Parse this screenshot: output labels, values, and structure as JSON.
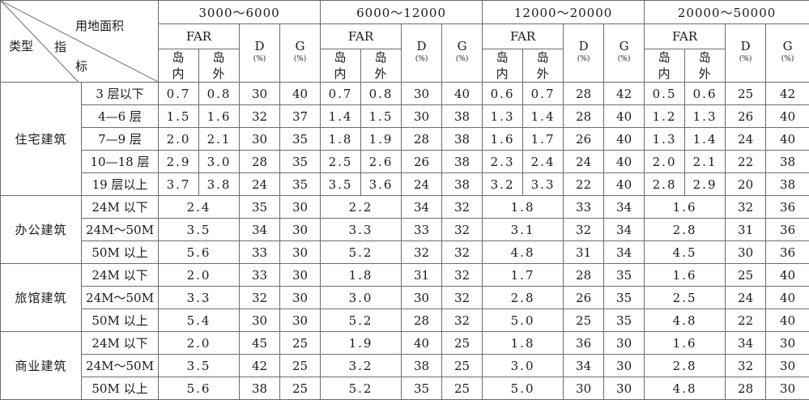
{
  "corner": {
    "land_area": "用地面积",
    "indicator_1": "指",
    "indicator_2": "标",
    "type": "类型"
  },
  "area_ranges": [
    "3000～6000",
    "6000～12000",
    "12000～20000",
    "20000～50000"
  ],
  "far_label": "FAR",
  "island_in": [
    "岛",
    "内"
  ],
  "island_out": [
    "岛",
    "外"
  ],
  "d_label": "D",
  "g_label": "G",
  "unit": "(%)",
  "categories": [
    {
      "name": "住宅建筑",
      "rows": [
        {
          "label": "3 层以下",
          "cells": [
            [
              "0.7",
              "0.8",
              "30",
              "40"
            ],
            [
              "0.7",
              "0.8",
              "30",
              "40"
            ],
            [
              "0.6",
              "0.7",
              "28",
              "42"
            ],
            [
              "0.5",
              "0.6",
              "25",
              "42"
            ]
          ]
        },
        {
          "label": "4—6 层",
          "cells": [
            [
              "1.5",
              "1.6",
              "32",
              "37"
            ],
            [
              "1.4",
              "1.5",
              "30",
              "38"
            ],
            [
              "1.3",
              "1.4",
              "28",
              "40"
            ],
            [
              "1.2",
              "1.3",
              "26",
              "40"
            ]
          ]
        },
        {
          "label": "7—9 层",
          "cells": [
            [
              "2.0",
              "2.1",
              "30",
              "35"
            ],
            [
              "1.8",
              "1.9",
              "28",
              "38"
            ],
            [
              "1.6",
              "1.7",
              "26",
              "40"
            ],
            [
              "1.3",
              "1.4",
              "24",
              "40"
            ]
          ]
        },
        {
          "label": "10—18 层",
          "cells": [
            [
              "2.9",
              "3.0",
              "28",
              "35"
            ],
            [
              "2.5",
              "2.6",
              "26",
              "38"
            ],
            [
              "2.3",
              "2.4",
              "24",
              "40"
            ],
            [
              "2.0",
              "2.1",
              "22",
              "38"
            ]
          ]
        },
        {
          "label": "19 层以上",
          "cells": [
            [
              "3.7",
              "3.8",
              "24",
              "35"
            ],
            [
              "3.5",
              "3.6",
              "24",
              "38"
            ],
            [
              "3.2",
              "3.3",
              "22",
              "40"
            ],
            [
              "2.8",
              "2.9",
              "20",
              "38"
            ]
          ]
        }
      ]
    },
    {
      "name": "办公建筑",
      "rows": [
        {
          "label": "24M 以下",
          "cells": [
            [
              "2.4",
              "35",
              "30"
            ],
            [
              "2.2",
              "34",
              "32"
            ],
            [
              "1.8",
              "33",
              "34"
            ],
            [
              "1.6",
              "32",
              "36"
            ]
          ]
        },
        {
          "label": "24M～50M",
          "cells": [
            [
              "3.5",
              "34",
              "30"
            ],
            [
              "3.3",
              "33",
              "32"
            ],
            [
              "3.1",
              "32",
              "34"
            ],
            [
              "2.8",
              "31",
              "36"
            ]
          ]
        },
        {
          "label": "50M 以上",
          "cells": [
            [
              "5.6",
              "33",
              "30"
            ],
            [
              "5.2",
              "32",
              "32"
            ],
            [
              "4.8",
              "31",
              "34"
            ],
            [
              "4.5",
              "30",
              "36"
            ]
          ]
        }
      ]
    },
    {
      "name": "旅馆建筑",
      "rows": [
        {
          "label": "24M 以下",
          "cells": [
            [
              "2.0",
              "33",
              "30"
            ],
            [
              "1.8",
              "31",
              "32"
            ],
            [
              "1.7",
              "28",
              "35"
            ],
            [
              "1.6",
              "25",
              "40"
            ]
          ]
        },
        {
          "label": "24M～50M",
          "cells": [
            [
              "3.3",
              "32",
              "30"
            ],
            [
              "3.0",
              "30",
              "32"
            ],
            [
              "2.8",
              "26",
              "35"
            ],
            [
              "2.5",
              "24",
              "40"
            ]
          ]
        },
        {
          "label": "50M 以上",
          "cells": [
            [
              "5.4",
              "30",
              "30"
            ],
            [
              "5.2",
              "28",
              "32"
            ],
            [
              "5.0",
              "25",
              "35"
            ],
            [
              "4.8",
              "22",
              "40"
            ]
          ]
        }
      ]
    },
    {
      "name": "商业建筑",
      "rows": [
        {
          "label": "24M 以下",
          "cells": [
            [
              "2.0",
              "45",
              "25"
            ],
            [
              "1.9",
              "40",
              "25"
            ],
            [
              "1.8",
              "36",
              "30"
            ],
            [
              "1.6",
              "34",
              "30"
            ]
          ]
        },
        {
          "label": "24M～50M",
          "cells": [
            [
              "3.5",
              "42",
              "25"
            ],
            [
              "3.2",
              "38",
              "25"
            ],
            [
              "3.0",
              "34",
              "30"
            ],
            [
              "2.8",
              "32",
              "30"
            ]
          ]
        },
        {
          "label": "50M 以上",
          "cells": [
            [
              "5.6",
              "38",
              "25"
            ],
            [
              "5.2",
              "35",
              "25"
            ],
            [
              "5.0",
              "30",
              "30"
            ],
            [
              "4.8",
              "28",
              "30"
            ]
          ]
        }
      ]
    }
  ]
}
